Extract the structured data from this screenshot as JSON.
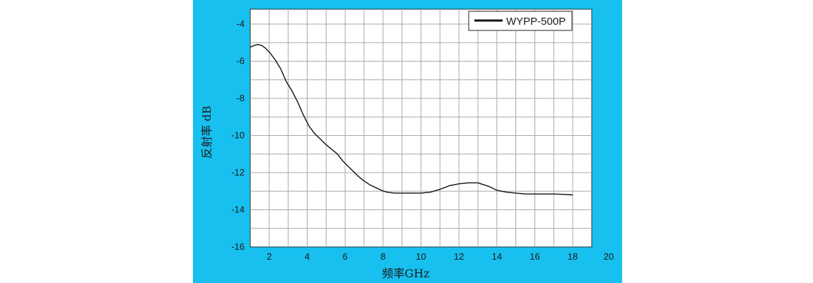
{
  "chart_data": {
    "type": "line",
    "title": "",
    "xlabel": "频率GHz",
    "ylabel": "反射率 dB",
    "xlim": [
      1,
      19
    ],
    "ylim": [
      -16,
      -3.2
    ],
    "x_ticks": [
      2,
      4,
      6,
      8,
      10,
      12,
      14,
      16,
      18,
      20
    ],
    "y_ticks": [
      -4,
      -6,
      -8,
      -10,
      -12,
      -14,
      -16
    ],
    "grid": true,
    "legend": {
      "position": "top-right",
      "entries": [
        "WYPP-500P"
      ]
    },
    "series": [
      {
        "name": "WYPP-500P",
        "color": "#111111",
        "x": [
          1.0,
          1.2,
          1.4,
          1.6,
          1.8,
          2.0,
          2.3,
          2.6,
          2.9,
          3.2,
          3.5,
          3.8,
          4.1,
          4.4,
          4.7,
          5.0,
          5.3,
          5.6,
          5.9,
          6.2,
          6.4,
          6.7,
          7.0,
          7.3,
          7.6,
          7.9,
          8.2,
          8.6,
          9.0,
          9.5,
          10.0,
          10.5,
          11.0,
          11.5,
          12.0,
          12.5,
          13.0,
          13.3,
          13.6,
          14.0,
          14.5,
          15.0,
          15.5,
          16.0,
          16.5,
          17.0,
          17.5,
          18.0
        ],
        "y": [
          -5.25,
          -5.15,
          -5.1,
          -5.15,
          -5.3,
          -5.5,
          -5.9,
          -6.4,
          -7.1,
          -7.6,
          -8.2,
          -8.9,
          -9.5,
          -9.9,
          -10.2,
          -10.5,
          -10.75,
          -11.0,
          -11.4,
          -11.7,
          -11.9,
          -12.2,
          -12.45,
          -12.65,
          -12.8,
          -12.95,
          -13.05,
          -13.1,
          -13.1,
          -13.1,
          -13.1,
          -13.05,
          -12.9,
          -12.7,
          -12.6,
          -12.55,
          -12.55,
          -12.65,
          -12.75,
          -12.95,
          -13.05,
          -13.1,
          -13.15,
          -13.15,
          -13.15,
          -13.15,
          -13.17,
          -13.2
        ]
      }
    ]
  }
}
